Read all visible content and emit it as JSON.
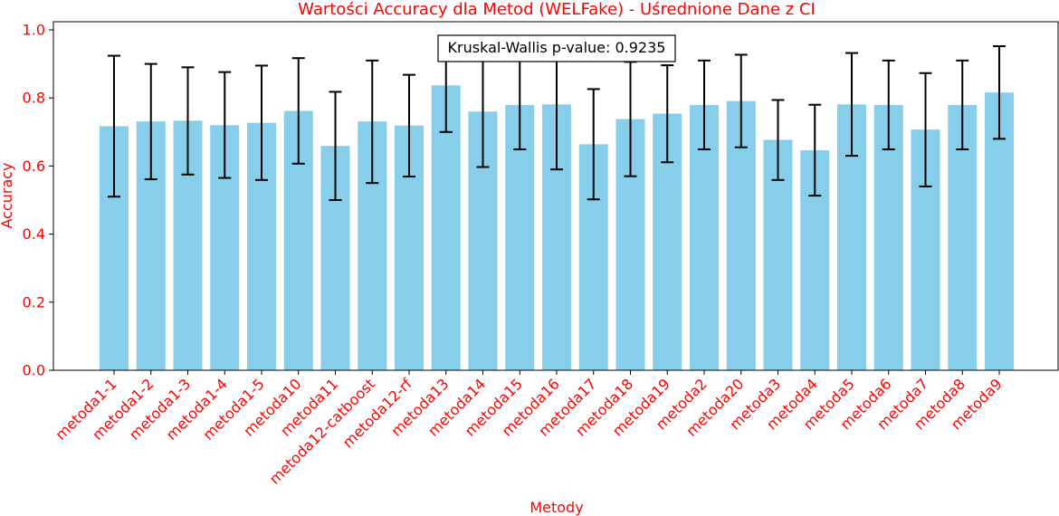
{
  "chart_data": {
    "type": "bar",
    "title": "Wartości Accuracy dla Metod (WELFake) - Uśrednione Dane z CI",
    "xlabel": "Metody",
    "ylabel": "Accuracy",
    "ylim": [
      0,
      1.0
    ],
    "yticks": [
      "0.0",
      "0.2",
      "0.4",
      "0.6",
      "0.8",
      "1.0"
    ],
    "annotation": "Kruskal-Wallis p-value: 0.9235",
    "grid": false,
    "categories": [
      "metoda1-1",
      "metoda1-2",
      "metoda1-3",
      "metoda1-4",
      "metoda1-5",
      "metoda10",
      "metoda11",
      "metoda12-catboost",
      "metoda12-rf",
      "metoda13",
      "metoda14",
      "metoda15",
      "metoda16",
      "metoda17",
      "metoda18",
      "metoda19",
      "metoda2",
      "metoda20",
      "metoda3",
      "metoda4",
      "metoda5",
      "metoda6",
      "metoda7",
      "metoda8",
      "metoda9"
    ],
    "values": [
      0.717,
      0.731,
      0.733,
      0.72,
      0.727,
      0.762,
      0.659,
      0.731,
      0.719,
      0.837,
      0.76,
      0.779,
      0.781,
      0.664,
      0.738,
      0.754,
      0.779,
      0.791,
      0.677,
      0.646,
      0.781,
      0.779,
      0.707,
      0.779,
      0.816
    ],
    "ci_lower": [
      0.51,
      0.561,
      0.575,
      0.565,
      0.559,
      0.607,
      0.5,
      0.55,
      0.569,
      0.7,
      0.597,
      0.649,
      0.59,
      0.502,
      0.57,
      0.611,
      0.649,
      0.655,
      0.559,
      0.513,
      0.63,
      0.649,
      0.54,
      0.649,
      0.68
    ],
    "ci_upper": [
      0.924,
      0.9,
      0.89,
      0.876,
      0.895,
      0.917,
      0.818,
      0.91,
      0.868,
      0.975,
      0.923,
      0.91,
      0.97,
      0.826,
      0.906,
      0.896,
      0.91,
      0.927,
      0.794,
      0.78,
      0.932,
      0.91,
      0.873,
      0.91,
      0.952
    ],
    "bar_color": "#87ceeb",
    "errorbar_color": "#000000",
    "text_color": "#ff0000"
  }
}
